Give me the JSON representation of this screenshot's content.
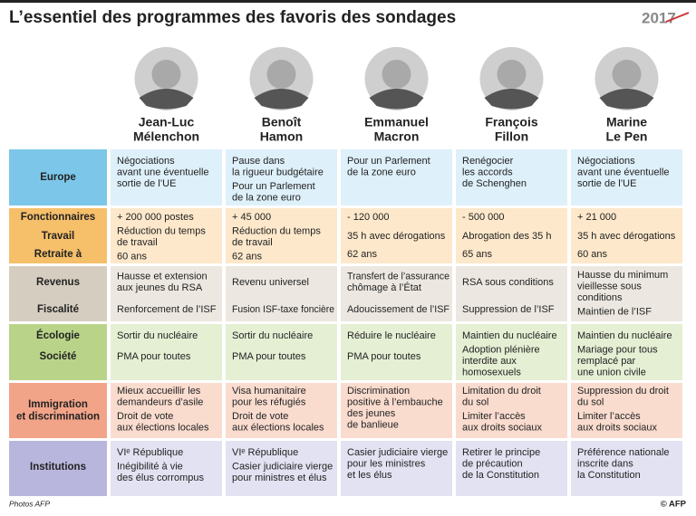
{
  "header": {
    "title": "L’essentiel des programmes des favoris des sondages",
    "logo": "2017"
  },
  "candidates": [
    [
      "Jean-Luc",
      "Mélenchon"
    ],
    [
      "Benoît",
      "Hamon"
    ],
    [
      "Emmanuel",
      "Macron"
    ],
    [
      "François",
      "Fillon"
    ],
    [
      "Marine",
      "Le Pen"
    ]
  ],
  "rows": [
    {
      "labels": [
        [
          "Europe"
        ]
      ],
      "cells": [
        [
          [
            "Négociations",
            "avant une éventuelle",
            "sortie de l’UE"
          ]
        ],
        [
          [
            "Pause dans",
            "la rigueur budgétaire"
          ],
          [
            "Pour un Parlement",
            "de la zone euro"
          ]
        ],
        [
          [
            "Pour un Parlement",
            "de la zone euro"
          ]
        ],
        [
          [
            "Renégocier",
            "les accords",
            "de Schenghen"
          ]
        ],
        [
          [
            "Négociations",
            "avant une éventuelle",
            "sortie de l’UE"
          ]
        ]
      ]
    },
    {
      "labels": [
        [
          "Fonctionnaires"
        ],
        [
          "Travail"
        ],
        [
          "Retraite à"
        ]
      ],
      "cells": [
        [
          [
            "+ 200 000 postes"
          ],
          [
            "Réduction du temps",
            "de travail"
          ],
          [
            "60 ans"
          ]
        ],
        [
          [
            "+ 45 000"
          ],
          [
            "Réduction du temps",
            "de travail"
          ],
          [
            "62 ans"
          ]
        ],
        [
          [
            "- 120 000"
          ],
          [
            "35 h avec dérogations"
          ],
          [
            "62 ans"
          ]
        ],
        [
          [
            "- 500 000"
          ],
          [
            "Abrogation des 35 h"
          ],
          [
            "65 ans"
          ]
        ],
        [
          [
            "+ 21 000"
          ],
          [
            "35 h avec dérogations"
          ],
          [
            "60 ans"
          ]
        ]
      ]
    },
    {
      "labels": [
        [
          "Revenus"
        ],
        [
          "Fiscalité"
        ]
      ],
      "cells": [
        [
          [
            "Hausse et extension",
            "aux jeunes du RSA"
          ],
          [
            "Renforcement de l’ISF"
          ]
        ],
        [
          [
            "Revenu universel"
          ],
          [
            "Fusion ISF-taxe foncière"
          ]
        ],
        [
          [
            "Transfert de l’assurance",
            "chômage à l’État"
          ],
          [
            "Adoucissement de l’ISF"
          ]
        ],
        [
          [
            "RSA sous conditions"
          ],
          [
            "Suppression de l’ISF"
          ]
        ],
        [
          [
            "Hausse du minimum",
            "vieillesse sous",
            "conditions"
          ],
          [
            "Maintien de l’ISF"
          ]
        ]
      ]
    },
    {
      "labels": [
        [
          "Écologie"
        ],
        [
          "Société"
        ]
      ],
      "cells": [
        [
          [
            "Sortir du nucléaire"
          ],
          [
            "PMA pour toutes"
          ]
        ],
        [
          [
            "Sortir du nucléaire"
          ],
          [
            "PMA pour toutes"
          ]
        ],
        [
          [
            "Réduire le nucléaire"
          ],
          [
            "PMA pour toutes"
          ]
        ],
        [
          [
            "Maintien du nucléaire"
          ],
          [
            "Adoption plénière",
            "interdite aux",
            "homosexuels"
          ]
        ],
        [
          [
            "Maintien du nucléaire"
          ],
          [
            "Mariage pour tous",
            "remplacé par",
            "une union civile"
          ]
        ]
      ]
    },
    {
      "labels": [
        [
          "Immigration",
          "et discrimination"
        ]
      ],
      "cells": [
        [
          [
            "Mieux accueillir les",
            "demandeurs d’asile"
          ],
          [
            "Droit de vote",
            "aux élections locales"
          ]
        ],
        [
          [
            "Visa humanitaire",
            "pour les réfugiés"
          ],
          [
            "Droit de vote",
            "aux élections locales"
          ]
        ],
        [
          [
            "Discrimination",
            "positive à l’embauche",
            "des jeunes",
            "de banlieue"
          ]
        ],
        [
          [
            "Limitation du droit",
            "du sol"
          ],
          [
            "Limiter l’accès",
            "aux droits sociaux"
          ]
        ],
        [
          [
            "Suppression du droit",
            "du sol"
          ],
          [
            "Limiter l’accès",
            "aux droits sociaux"
          ]
        ]
      ]
    },
    {
      "labels": [
        [
          "Institutions"
        ]
      ],
      "cells": [
        [
          [
            "VIᵉ République"
          ],
          [
            "Inégibilité à vie",
            "des élus corrompus"
          ]
        ],
        [
          [
            "VIᵉ République"
          ],
          [
            "Casier judiciaire vierge",
            "pour ministres et élus"
          ]
        ],
        [
          [
            "Casier judiciaire vierge",
            "pour les ministres",
            "et les élus"
          ]
        ],
        [
          [
            "Retirer le principe",
            "de précaution",
            "de la Constitution"
          ]
        ],
        [
          [
            "Préférence nationale",
            "inscrite dans",
            "la Constitution"
          ]
        ]
      ]
    }
  ],
  "footer": {
    "credit": "Photos AFP",
    "copyright": "© AFP"
  }
}
